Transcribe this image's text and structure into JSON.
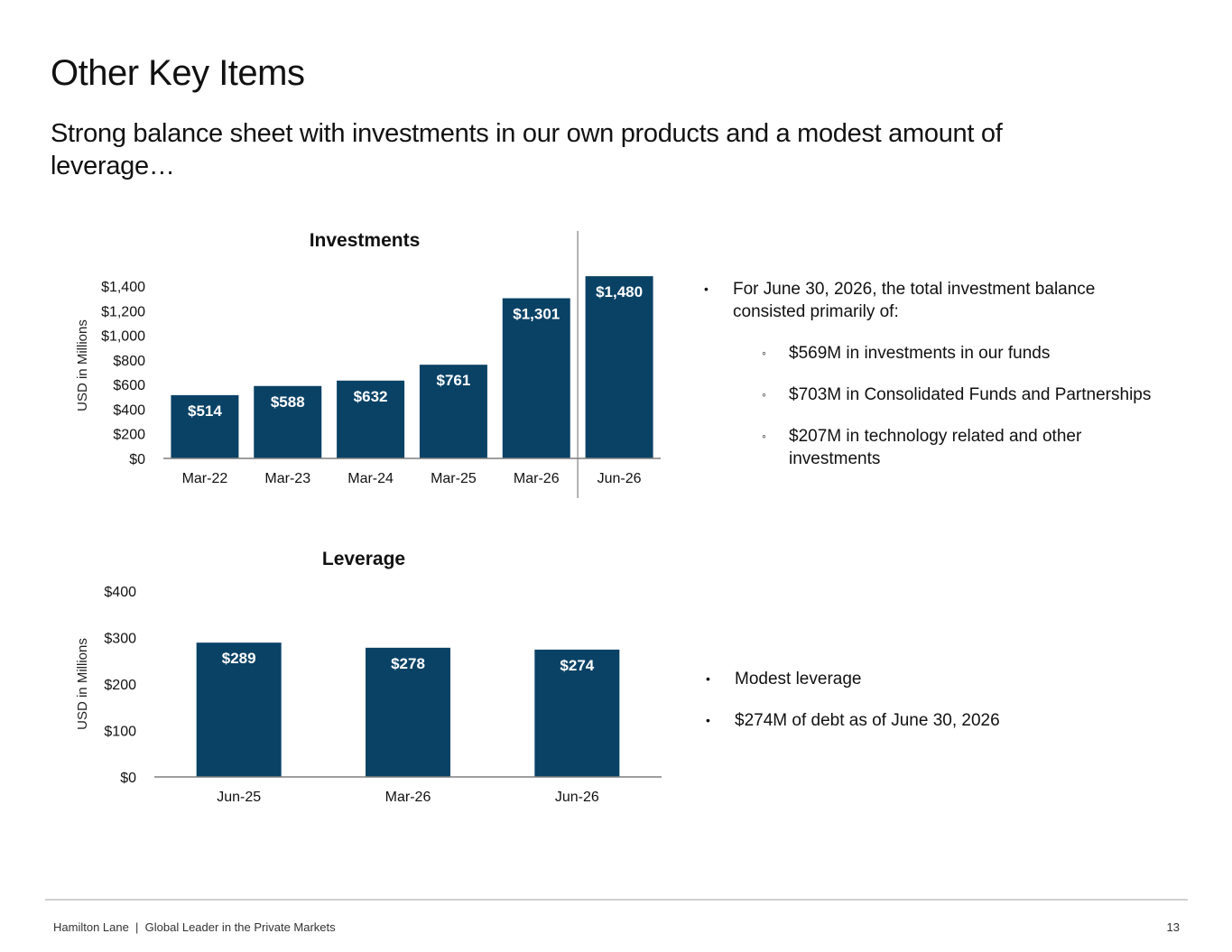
{
  "slide": {
    "title": "Other Key Items",
    "subtitle": "Strong balance sheet with investments in our own products and a modest amount of leverage…"
  },
  "colors": {
    "bar": "#0a4266",
    "axis": "#7f7f7f",
    "divider": "#b0b0b0",
    "label": "#ffffff"
  },
  "chart_data": [
    {
      "type": "bar",
      "title": "Investments",
      "ylabel": "USD in Millions",
      "xlabel": "",
      "categories": [
        "Mar-22",
        "Mar-23",
        "Mar-24",
        "Mar-25",
        "Mar-26",
        "Jun-26"
      ],
      "values": [
        514,
        588,
        632,
        761,
        1301,
        1480
      ],
      "value_labels": [
        "$514",
        "$588",
        "$632",
        "$761",
        "$1,301",
        "$1,480"
      ],
      "ylim": [
        0,
        1400
      ],
      "yticks": [
        0,
        200,
        400,
        600,
        800,
        1000,
        1200,
        1400
      ],
      "ytick_labels": [
        "$0",
        "$200",
        "$400",
        "$600",
        "$800",
        "$1,000",
        "$1,200",
        "$1,400"
      ],
      "grid": false,
      "legend": "none",
      "divider_after_category": "Mar-26"
    },
    {
      "type": "bar",
      "title": "Leverage",
      "ylabel": "USD in Millions",
      "xlabel": "",
      "categories": [
        "Jun-25",
        "Mar-26",
        "Jun-26"
      ],
      "values": [
        289,
        278,
        274
      ],
      "value_labels": [
        "$289",
        "$278",
        "$274"
      ],
      "ylim": [
        0,
        400
      ],
      "yticks": [
        0,
        100,
        200,
        300,
        400
      ],
      "ytick_labels": [
        "$0",
        "$100",
        "$200",
        "$300",
        "$400"
      ],
      "grid": false,
      "legend": "none"
    }
  ],
  "investment_notes": {
    "intro": "For June 30, 2026, the total investment balance consisted primarily of:",
    "items": [
      "$569M in investments in our funds",
      "$703M in Consolidated Funds and Partnerships",
      "$207M in technology related and other investments"
    ]
  },
  "leverage_notes": {
    "items": [
      "Modest leverage",
      "$274M of debt as of June 30, 2026"
    ]
  },
  "footer": {
    "left": "Hamilton Lane  |  Global Leader in the Private Markets",
    "page_number": "13"
  }
}
